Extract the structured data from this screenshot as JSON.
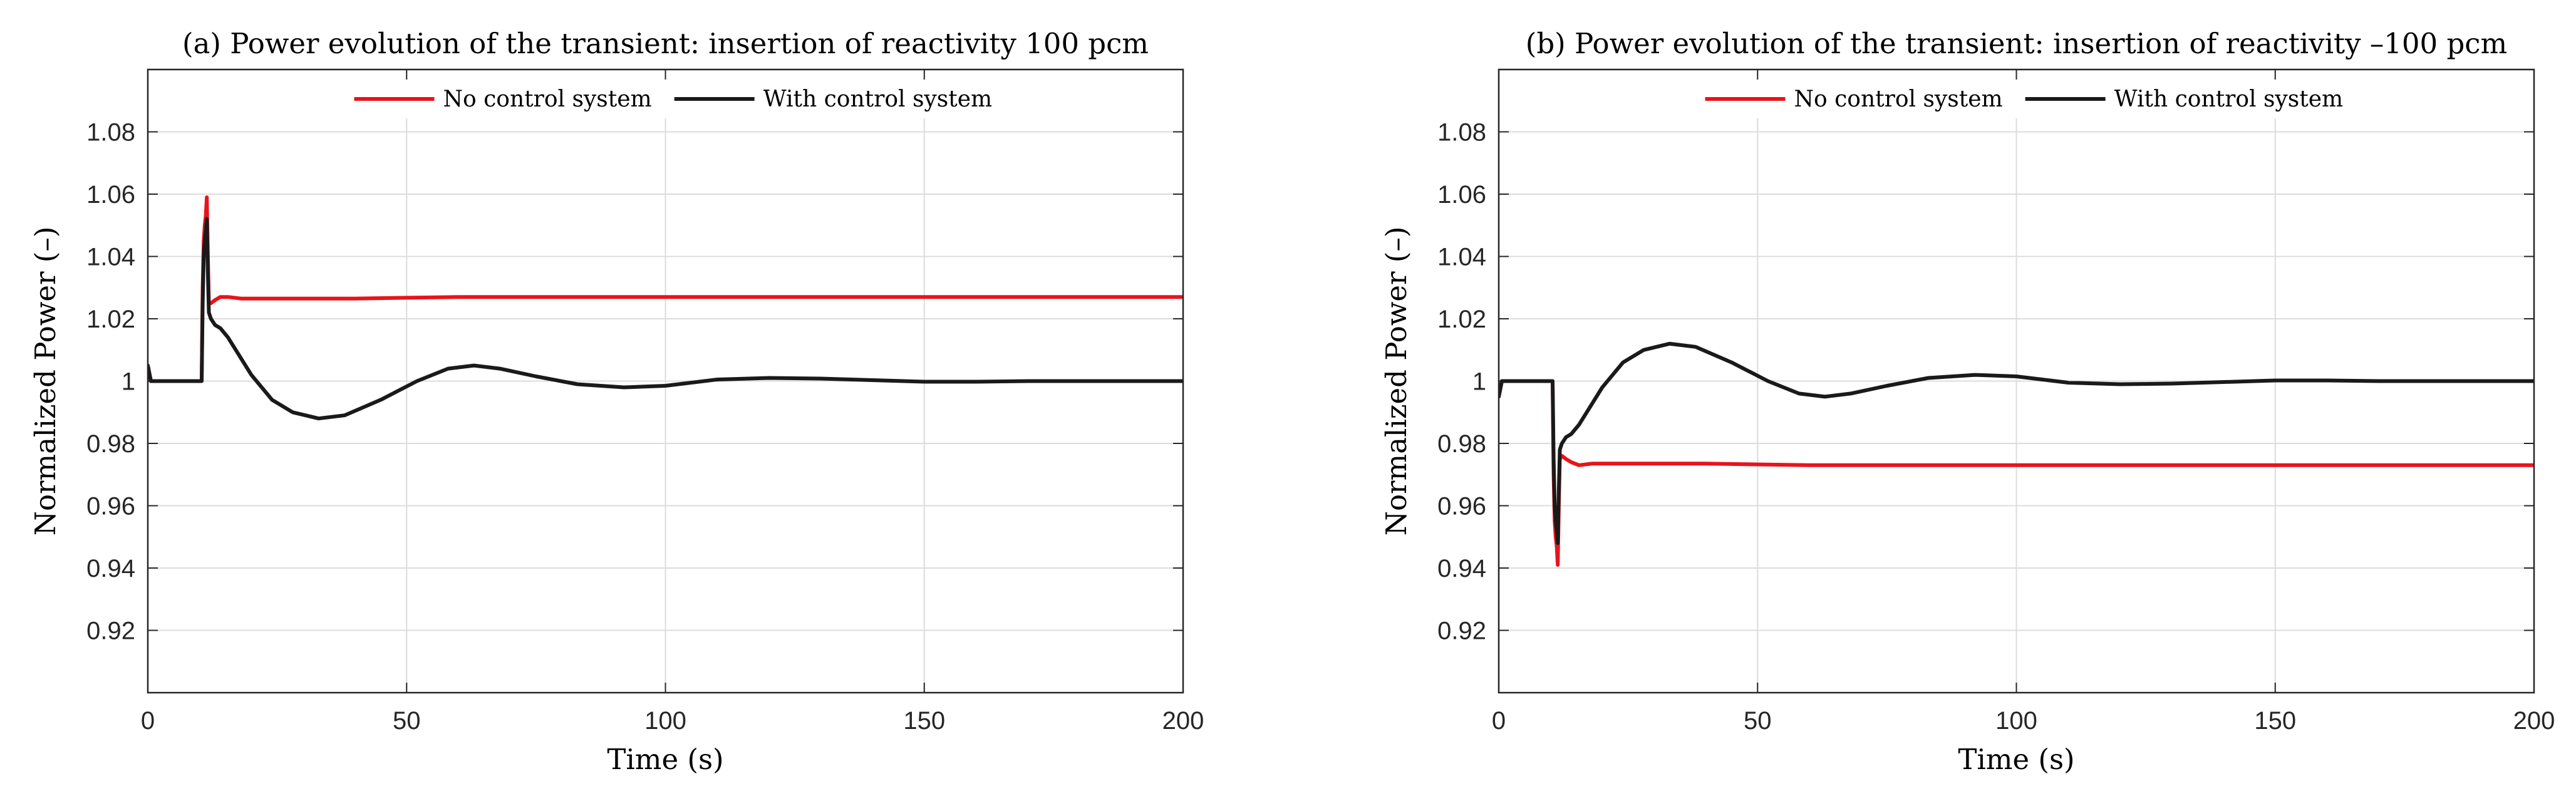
{
  "chart_data": [
    {
      "type": "line",
      "title": "(a) Power evolution of the transient: insertion of reactivity 100 pcm",
      "xlabel": "Time (s)",
      "ylabel": "Normalized Power (–)",
      "xlim": [
        0,
        200
      ],
      "ylim": [
        0.9,
        1.1
      ],
      "xticks": [
        0,
        50,
        100,
        150,
        200
      ],
      "xticklabels": [
        "0",
        "50",
        "100",
        "150",
        "200"
      ],
      "yticks": [
        0.92,
        0.94,
        0.96,
        0.98,
        1.0,
        1.02,
        1.04,
        1.06,
        1.08
      ],
      "yticklabels": [
        "0.92",
        "0.94",
        "0.96",
        "0.98",
        "1",
        "1.02",
        "1.04",
        "1.06",
        "1.08"
      ],
      "grid": true,
      "legend": {
        "location": "top-center",
        "orientation": "horizontal"
      },
      "series": [
        {
          "name": "No control system",
          "color": "#e8141b",
          "x": [
            0,
            0.6,
            1.0,
            10.4,
            10.6,
            10.8,
            11.0,
            11.2,
            11.4,
            11.6,
            11.8,
            12.2,
            13.0,
            14.0,
            15.5,
            18,
            25,
            40,
            60,
            100,
            150,
            200
          ],
          "y": [
            1.005,
            1.0,
            1.0,
            1.0,
            1.03,
            1.045,
            1.05,
            1.053,
            1.059,
            1.04,
            1.025,
            1.025,
            1.026,
            1.027,
            1.027,
            1.0265,
            1.0265,
            1.0265,
            1.027,
            1.027,
            1.027,
            1.027
          ]
        },
        {
          "name": "With control system",
          "color": "#1a1a1a",
          "x": [
            0,
            0.6,
            1.0,
            10.4,
            10.6,
            10.8,
            11.0,
            11.2,
            11.4,
            11.6,
            11.8,
            12.2,
            13.0,
            14.0,
            15.5,
            17,
            20,
            24,
            28,
            33,
            38,
            45,
            52,
            58,
            63,
            68,
            75,
            83,
            92,
            100,
            110,
            120,
            130,
            140,
            150,
            160,
            170,
            180,
            190,
            200
          ],
          "y": [
            1.005,
            1.0,
            1.0,
            1.0,
            1.025,
            1.04,
            1.045,
            1.048,
            1.052,
            1.035,
            1.022,
            1.02,
            1.018,
            1.017,
            1.014,
            1.01,
            1.002,
            0.994,
            0.99,
            0.988,
            0.989,
            0.994,
            1.0,
            1.004,
            1.005,
            1.004,
            1.0015,
            0.999,
            0.998,
            0.9985,
            1.0005,
            1.001,
            1.0008,
            1.0003,
            0.9998,
            0.9998,
            1.0,
            1.0,
            1.0,
            1.0
          ]
        }
      ]
    },
    {
      "type": "line",
      "title": "(b) Power evolution of the transient: insertion of reactivity –100 pcm",
      "xlabel": "Time (s)",
      "ylabel": "Normalized Power (–)",
      "xlim": [
        0,
        200
      ],
      "ylim": [
        0.9,
        1.1
      ],
      "xticks": [
        0,
        50,
        100,
        150,
        200
      ],
      "xticklabels": [
        "0",
        "50",
        "100",
        "150",
        "200"
      ],
      "yticks": [
        0.92,
        0.94,
        0.96,
        0.98,
        1.0,
        1.02,
        1.04,
        1.06,
        1.08
      ],
      "yticklabels": [
        "0.92",
        "0.94",
        "0.96",
        "0.98",
        "1",
        "1.02",
        "1.04",
        "1.06",
        "1.08"
      ],
      "grid": true,
      "legend": {
        "location": "top-center",
        "orientation": "horizontal"
      },
      "series": [
        {
          "name": "No control system",
          "color": "#e8141b",
          "x": [
            0,
            0.6,
            1.0,
            10.4,
            10.6,
            10.8,
            11.0,
            11.2,
            11.4,
            11.6,
            11.8,
            12.2,
            13.0,
            14.0,
            15.5,
            18,
            25,
            40,
            60,
            100,
            150,
            200
          ],
          "y": [
            0.995,
            1.0,
            1.0,
            1.0,
            0.97,
            0.955,
            0.95,
            0.947,
            0.941,
            0.96,
            0.975,
            0.976,
            0.975,
            0.974,
            0.973,
            0.9735,
            0.9735,
            0.9735,
            0.973,
            0.973,
            0.973,
            0.973
          ]
        },
        {
          "name": "With control system",
          "color": "#1a1a1a",
          "x": [
            0,
            0.6,
            1.0,
            10.4,
            10.6,
            10.8,
            11.0,
            11.2,
            11.4,
            11.6,
            11.8,
            12.2,
            13.0,
            14.0,
            15.5,
            17,
            20,
            24,
            28,
            33,
            38,
            45,
            52,
            58,
            63,
            68,
            75,
            83,
            92,
            100,
            110,
            120,
            130,
            140,
            150,
            160,
            170,
            180,
            190,
            200
          ],
          "y": [
            0.995,
            1.0,
            1.0,
            1.0,
            0.975,
            0.96,
            0.955,
            0.952,
            0.948,
            0.965,
            0.978,
            0.98,
            0.982,
            0.983,
            0.986,
            0.99,
            0.998,
            1.006,
            1.01,
            1.012,
            1.011,
            1.006,
            1.0,
            0.996,
            0.995,
            0.996,
            0.9985,
            1.001,
            1.002,
            1.0015,
            0.9995,
            0.999,
            0.9992,
            0.9997,
            1.0002,
            1.0002,
            1.0,
            1.0,
            1.0,
            1.0
          ]
        }
      ]
    }
  ]
}
